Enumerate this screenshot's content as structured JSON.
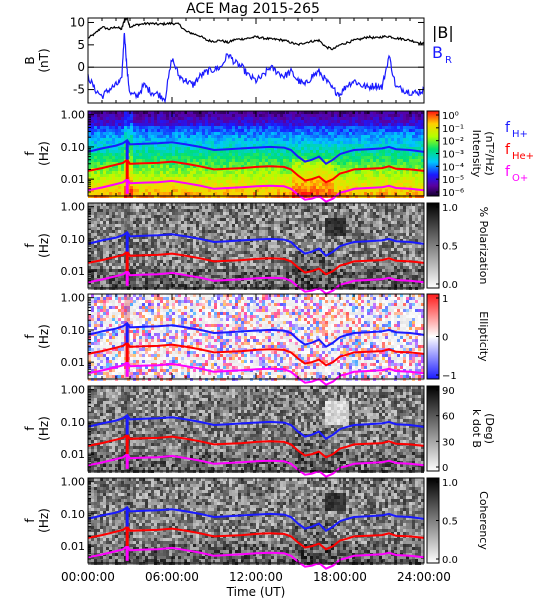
{
  "chart_data": {
    "title": "ACE Mag 2015-265",
    "xlabel": "Time (UT)",
    "x_ticks": [
      "00:00:00",
      "06:00:00",
      "12:00:00",
      "18:00:00",
      "24:00:00"
    ],
    "x_tick_hours": [
      0,
      6,
      12,
      18,
      24
    ],
    "panels": [
      {
        "type": "line",
        "ylabel": "B",
        "yunit": "(nT)",
        "ylim": [
          -8,
          11
        ],
        "yticks": [
          10,
          5,
          0,
          -5
        ],
        "legend": [
          {
            "label": "|B|",
            "color": "#000000"
          },
          {
            "label": "B",
            "sub": "R",
            "color": "#1a1aff"
          }
        ],
        "series": [
          {
            "name": "|B|",
            "color": "#000000",
            "x": [
              0,
              0.5,
              1,
              1.5,
              2,
              2.4,
              2.6,
              2.8,
              3,
              3.5,
              4,
              4.5,
              5,
              5.5,
              6,
              6.5,
              7,
              7.5,
              8,
              8.5,
              9,
              9.5,
              10,
              10.5,
              11,
              11.5,
              12,
              12.5,
              13,
              13.5,
              14,
              14.5,
              15,
              15.5,
              16,
              16.5,
              17,
              17.5,
              18,
              18.5,
              19,
              19.5,
              20,
              20.5,
              21,
              21.5,
              22,
              22.5,
              23,
              23.5,
              24
            ],
            "y": [
              6.5,
              7.5,
              9,
              8.5,
              9,
              8.5,
              10.5,
              11,
              9,
              9.5,
              9.7,
              9.8,
              9.6,
              9.7,
              9.8,
              9.6,
              8,
              7.5,
              7,
              6,
              5.8,
              6,
              5.5,
              6.2,
              6.3,
              6.5,
              6.8,
              6.5,
              6.3,
              6.2,
              6.0,
              5.5,
              5.0,
              5.5,
              5.8,
              6.0,
              4.5,
              4.0,
              5.0,
              5.5,
              6.0,
              6.3,
              6.8,
              6.5,
              6.8,
              6.9,
              6.5,
              6.3,
              6.0,
              5.6,
              5.2
            ]
          },
          {
            "name": "B_R",
            "color": "#1a1aff",
            "x": [
              0,
              0.5,
              1,
              1.5,
              2,
              2.4,
              2.6,
              2.8,
              3,
              3.5,
              4,
              4.5,
              5,
              5.5,
              6,
              6.5,
              7,
              7.5,
              8,
              8.5,
              9,
              9.5,
              10,
              10.5,
              11,
              11.5,
              12,
              12.5,
              13,
              13.5,
              14,
              14.5,
              15,
              15.5,
              16,
              16.5,
              17,
              17.5,
              18,
              18.5,
              19,
              19.5,
              20,
              20.5,
              21,
              21.5,
              22,
              22.5,
              23,
              23.5,
              24
            ],
            "y": [
              -2,
              -5,
              -6.5,
              -5,
              -4,
              -3,
              8,
              -1,
              -6,
              -6.5,
              -4,
              -5.5,
              -6,
              -7,
              2,
              -2,
              -3,
              -4,
              -2,
              -1,
              -0.5,
              0,
              3,
              1,
              0,
              -2,
              -3,
              -2,
              0,
              -1,
              -2,
              -1,
              -3,
              -4,
              -2,
              -1,
              -3,
              -5,
              -6,
              -4,
              -3,
              -4,
              -4.5,
              -4,
              -4.5,
              2.5,
              -4.5,
              -5,
              -5.5,
              -5.8,
              -5
            ]
          }
        ]
      },
      {
        "type": "heatmap",
        "style": "rainbow",
        "ylabel": "f",
        "yunit": "(Hz)",
        "yticks": [
          "1.00",
          "0.10",
          "0.01"
        ],
        "colorbar": {
          "label": "Intensity",
          "unit": "(nT²/Hz)",
          "ticks": [
            "10⁰",
            "10⁻¹",
            "10⁻²",
            "10⁻³",
            "10⁻⁴",
            "10⁻⁵",
            "10⁻⁶"
          ]
        },
        "legend": [
          {
            "label": "f",
            "sub": "H+",
            "color": "#1a1aff"
          },
          {
            "label": "f",
            "sub": "He+",
            "color": "#ff0000"
          },
          {
            "label": "f",
            "sub": "O+",
            "color": "#ff00ff"
          }
        ]
      },
      {
        "type": "heatmap",
        "style": "gray",
        "ylabel": "f",
        "yunit": "(Hz)",
        "yticks": [
          "1.00",
          "0.10",
          "0.01"
        ],
        "colorbar": {
          "label": "% Polarization",
          "unit": "",
          "ticks": [
            "1.0",
            "0.5",
            "0.0"
          ]
        }
      },
      {
        "type": "heatmap",
        "style": "bwr",
        "ylabel": "f",
        "yunit": "(Hz)",
        "yticks": [
          "1.00",
          "0.10",
          "0.01"
        ],
        "colorbar": {
          "label": "Ellipticity",
          "unit": "",
          "ticks": [
            "1",
            "0",
            "−1"
          ]
        }
      },
      {
        "type": "heatmap",
        "style": "gray",
        "ylabel": "f",
        "yunit": "(Hz)",
        "yticks": [
          "1.00",
          "0.10",
          "0.01"
        ],
        "colorbar": {
          "label": "k dot B",
          "unit": "(Deg)",
          "ticks": [
            "90",
            "60",
            "30",
            "0"
          ]
        }
      },
      {
        "type": "heatmap",
        "style": "gray",
        "ylabel": "f",
        "yunit": "(Hz)",
        "yticks": [
          "1.00",
          "0.10",
          "0.01"
        ],
        "colorbar": {
          "label": "Coherency",
          "unit": "",
          "ticks": [
            "1.0",
            "0.5",
            "0.0"
          ]
        }
      }
    ],
    "gyrofrequencies": {
      "x": [
        0,
        1,
        2,
        2.5,
        2.8,
        3,
        4,
        5,
        6,
        7,
        8,
        9,
        10,
        11,
        12,
        13,
        14,
        14.5,
        15,
        15.5,
        16,
        16.5,
        17,
        17.5,
        18,
        18.5,
        19,
        20,
        21,
        21.5,
        22,
        23,
        24
      ],
      "H+": [
        0.07,
        0.09,
        0.11,
        0.13,
        0.16,
        0.12,
        0.125,
        0.13,
        0.14,
        0.12,
        0.1,
        0.08,
        0.085,
        0.09,
        0.095,
        0.1,
        0.095,
        0.08,
        0.05,
        0.035,
        0.04,
        0.05,
        0.03,
        0.04,
        0.06,
        0.07,
        0.08,
        0.085,
        0.09,
        0.1,
        0.085,
        0.08,
        0.07
      ],
      "He+": [
        0.018,
        0.022,
        0.028,
        0.032,
        0.04,
        0.03,
        0.031,
        0.032,
        0.035,
        0.03,
        0.025,
        0.02,
        0.021,
        0.022,
        0.024,
        0.025,
        0.024,
        0.02,
        0.013,
        0.009,
        0.01,
        0.012,
        0.008,
        0.01,
        0.015,
        0.017,
        0.02,
        0.021,
        0.022,
        0.025,
        0.021,
        0.02,
        0.018
      ],
      "O+": [
        0.0045,
        0.0055,
        0.007,
        0.008,
        0.01,
        0.0075,
        0.0078,
        0.008,
        0.0088,
        0.0075,
        0.0063,
        0.005,
        0.0053,
        0.0056,
        0.006,
        0.0062,
        0.006,
        0.005,
        0.0033,
        0.0023,
        0.0025,
        0.003,
        0.002,
        0.0025,
        0.0038,
        0.0043,
        0.005,
        0.0053,
        0.0056,
        0.0062,
        0.0053,
        0.005,
        0.0045
      ]
    },
    "flim_hz": [
      0.003,
      1.3
    ],
    "xlim_hours": [
      0,
      24
    ],
    "grid": false
  },
  "colors": {
    "bmag": "#000000",
    "br": "#1a1aff",
    "h_plus": "#1a1aff",
    "he_plus": "#ff0000",
    "o_plus": "#ff00ff",
    "axis": "#000000",
    "background": "#ffffff"
  }
}
